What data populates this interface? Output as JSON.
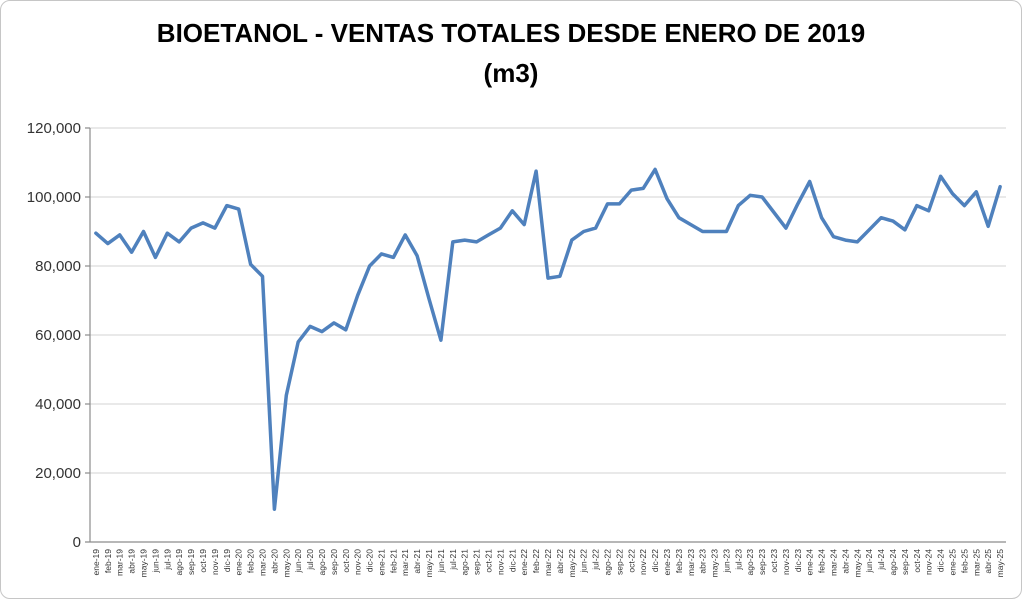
{
  "figure": {
    "title_line1": "BIOETANOL - VENTAS TOTALES DESDE ENERO DE 2019",
    "title_line2": "(m3)"
  },
  "chart_data": {
    "type": "line",
    "title": "BIOETANOL - VENTAS TOTALES DESDE ENERO DE 2019 (m3)",
    "xlabel": "",
    "ylabel": "",
    "ylim": [
      0,
      120000
    ],
    "yticks": [
      0,
      20000,
      40000,
      60000,
      80000,
      100000,
      120000
    ],
    "ytick_labels": [
      "0",
      "20,000",
      "40,000",
      "60,000",
      "80,000",
      "100,000",
      "120,000"
    ],
    "grid": true,
    "legend": false,
    "line_color": "#4F81BD",
    "grid_color": "#D3D3D3",
    "axis_color": "#8C8C8C",
    "label_color": "#333333",
    "x": [
      "ene-19",
      "feb-19",
      "mar-19",
      "abr-19",
      "may-19",
      "jun-19",
      "jul-19",
      "ago-19",
      "sep-19",
      "oct-19",
      "nov-19",
      "dic-19",
      "ene-20",
      "feb-20",
      "mar-20",
      "abr-20",
      "may-20",
      "jun-20",
      "jul-20",
      "ago-20",
      "sep-20",
      "oct-20",
      "nov-20",
      "dic-20",
      "ene-21",
      "feb-21",
      "mar-21",
      "abr-21",
      "may-21",
      "jun-21",
      "jul-21",
      "ago-21",
      "sep-21",
      "oct-21",
      "nov-21",
      "dic-21",
      "ene-22",
      "feb-22",
      "mar-22",
      "abr-22",
      "may-22",
      "jun-22",
      "jul-22",
      "ago-22",
      "sep-22",
      "oct-22",
      "nov-22",
      "dic-22",
      "ene-23",
      "feb-23",
      "mar-23",
      "abr-23",
      "may-23",
      "jun-23",
      "jul-23",
      "ago-23",
      "sep-23",
      "oct-23",
      "nov-23",
      "dic-23",
      "ene-24",
      "feb-24",
      "mar-24",
      "abr-24",
      "may-24",
      "jun-24",
      "jul-24",
      "ago-24",
      "sep-24",
      "oct-24",
      "nov-24",
      "dic-24",
      "ene-25",
      "feb-25",
      "mar-25",
      "abr-25",
      "may-25"
    ],
    "values": [
      89500,
      86500,
      89000,
      84000,
      90000,
      82500,
      89500,
      87000,
      91000,
      92500,
      91000,
      97500,
      96500,
      80500,
      77000,
      9500,
      42500,
      58000,
      62500,
      61000,
      63500,
      61500,
      71500,
      80000,
      83500,
      82500,
      89000,
      83000,
      70500,
      58500,
      87000,
      87500,
      87000,
      89000,
      91000,
      96000,
      92000,
      107500,
      76500,
      77000,
      87500,
      90000,
      91000,
      98000,
      98000,
      102000,
      102500,
      108000,
      99500,
      94000,
      92000,
      90000,
      90000,
      90000,
      97500,
      100500,
      100000,
      95500,
      91000,
      98000,
      104500,
      94000,
      88500,
      87500,
      87000,
      90500,
      94000,
      93000,
      90500,
      97500,
      96000,
      106000,
      101000,
      97500,
      101500,
      91500,
      103000
    ]
  }
}
